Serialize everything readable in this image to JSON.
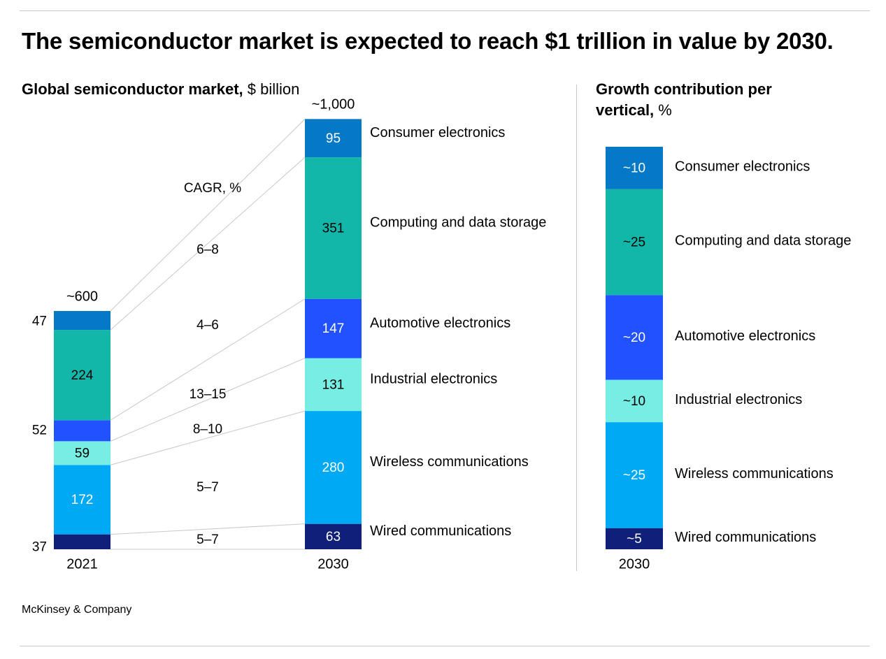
{
  "title": "The semiconductor market is expected to reach $1 trillion in value by 2030.",
  "left_subtitle": {
    "bold": "Global semiconductor market,",
    "unit": "$ billion"
  },
  "right_subtitle": {
    "bold_line1": "Growth contribution per",
    "bold_line2": "vertical,",
    "unit": "%"
  },
  "source": "McKinsey & Company",
  "colors": {
    "wired": "#0f1f7a",
    "wireless": "#00a9f4",
    "industrial": "#76eee3",
    "automotive": "#2251ff",
    "computing": "#13b7a9",
    "consumer": "#0679c6",
    "connector": "#c8c8c8"
  },
  "chart_data": [
    {
      "type": "bar",
      "subtype": "stacked",
      "categories": [
        "2021",
        "2030"
      ],
      "totals": [
        "~600",
        "~1,000"
      ],
      "cagr_label": "CAGR, %",
      "series": [
        {
          "key": "wired",
          "name": "Wired communications",
          "values": [
            37,
            63
          ],
          "labels": [
            "37",
            "63"
          ],
          "cagr": "5–7",
          "color_key": "wired"
        },
        {
          "key": "wireless",
          "name": "Wireless communications",
          "values": [
            172,
            280
          ],
          "labels": [
            "172",
            "280"
          ],
          "cagr": "5–7",
          "color_key": "wireless"
        },
        {
          "key": "industrial",
          "name": "Industrial electronics",
          "values": [
            59,
            131
          ],
          "labels": [
            "59",
            "131"
          ],
          "cagr": "8–10",
          "color_key": "industrial"
        },
        {
          "key": "automotive",
          "name": "Automotive electronics",
          "values": [
            52,
            147
          ],
          "labels": [
            "52",
            "147"
          ],
          "cagr": "13–15",
          "color_key": "automotive"
        },
        {
          "key": "computing",
          "name": "Computing and data storage",
          "values": [
            224,
            351
          ],
          "labels": [
            "224",
            "351"
          ],
          "cagr": "4–6",
          "color_key": "computing"
        },
        {
          "key": "consumer",
          "name": "Consumer electronics",
          "values": [
            47,
            95
          ],
          "labels": [
            "47",
            "95"
          ],
          "cagr": "6–8",
          "color_key": "consumer"
        }
      ]
    },
    {
      "type": "bar",
      "subtype": "stacked-100",
      "categories": [
        "2030"
      ],
      "series": [
        {
          "key": "wired",
          "name": "Wired communications",
          "values": [
            5
          ],
          "label": "~5",
          "color_key": "wired"
        },
        {
          "key": "wireless",
          "name": "Wireless communications",
          "values": [
            25
          ],
          "label": "~25",
          "color_key": "wireless"
        },
        {
          "key": "industrial",
          "name": "Industrial electronics",
          "values": [
            10
          ],
          "label": "~10",
          "color_key": "industrial"
        },
        {
          "key": "automotive",
          "name": "Automotive electronics",
          "values": [
            20
          ],
          "label": "~20",
          "color_key": "automotive"
        },
        {
          "key": "computing",
          "name": "Computing and data storage",
          "values": [
            25
          ],
          "label": "~25",
          "color_key": "computing"
        },
        {
          "key": "consumer",
          "name": "Consumer electronics",
          "values": [
            10
          ],
          "label": "~10",
          "color_key": "consumer"
        }
      ]
    }
  ]
}
